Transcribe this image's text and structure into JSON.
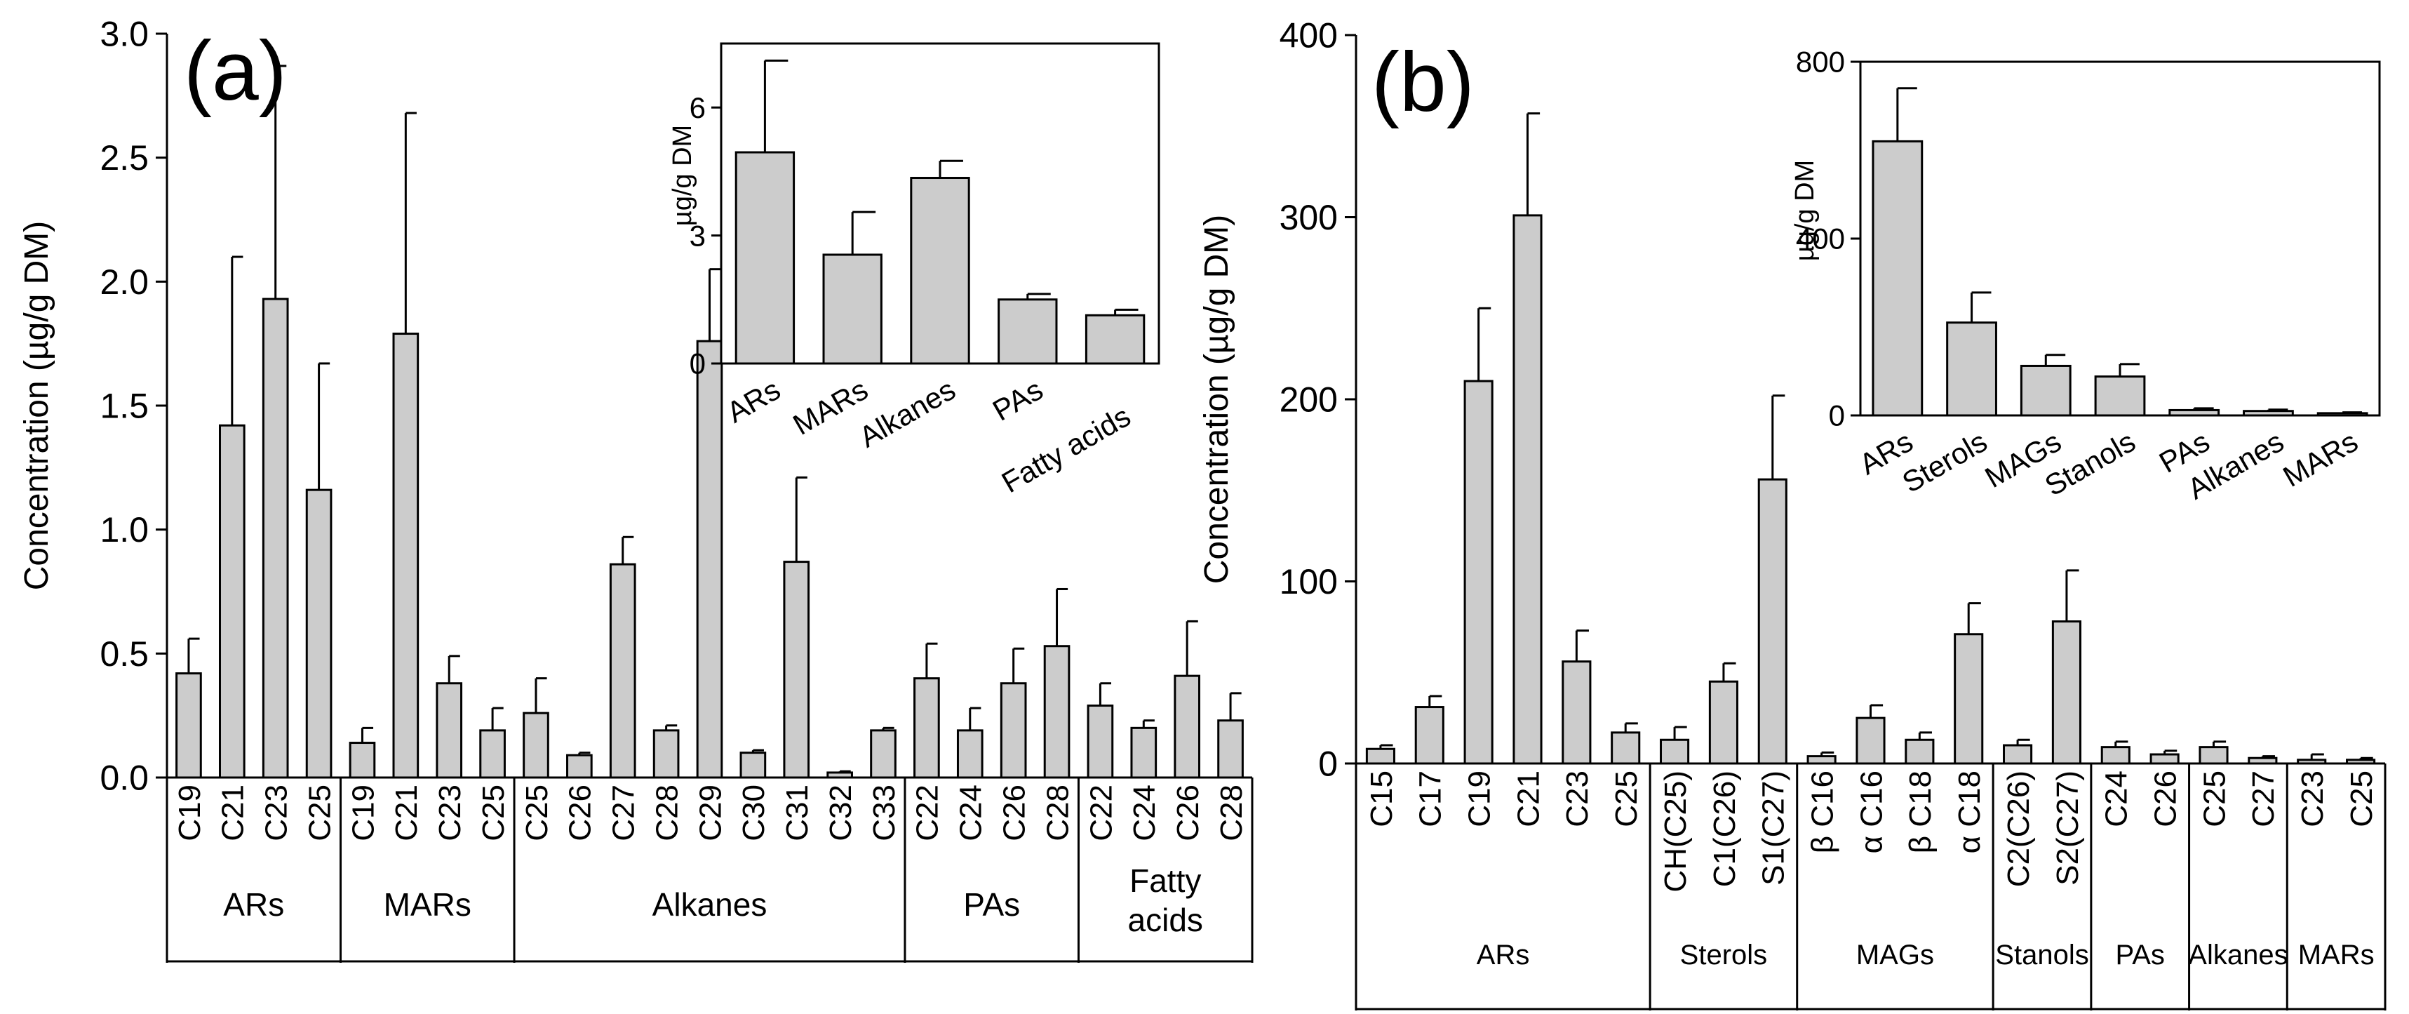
{
  "chart_data": [
    {
      "id": "a",
      "type": "bar",
      "panel_label": "(a)",
      "ylabel": "Concentration (µg/g DM)",
      "ylim": [
        0,
        3.0
      ],
      "yticks": [
        "0.0",
        "0.5",
        "1.0",
        "1.5",
        "2.0",
        "2.5",
        "3.0"
      ],
      "bar_color": "#cccccc",
      "groups": [
        {
          "name": "ARs",
          "categories": [
            "C19",
            "C21",
            "C23",
            "C25"
          ],
          "values": [
            0.42,
            1.42,
            1.93,
            1.16
          ],
          "errors": [
            0.14,
            0.68,
            0.94,
            0.51
          ]
        },
        {
          "name": "MARs",
          "categories": [
            "C19",
            "C21",
            "C23",
            "C25"
          ],
          "values": [
            0.14,
            1.79,
            0.38,
            0.19
          ],
          "errors": [
            0.06,
            0.89,
            0.11,
            0.09
          ]
        },
        {
          "name": "Alkanes",
          "categories": [
            "C25",
            "C26",
            "C27",
            "C28",
            "C29",
            "C30",
            "C31",
            "C32",
            "C33"
          ],
          "values": [
            0.26,
            0.09,
            0.86,
            0.19,
            1.76,
            0.1,
            0.87,
            0.02,
            0.19
          ],
          "errors": [
            0.14,
            0.01,
            0.11,
            0.02,
            0.29,
            0.01,
            0.34,
            0.005,
            0.01
          ]
        },
        {
          "name": "PAs",
          "categories": [
            "C22",
            "C24",
            "C26",
            "C28"
          ],
          "values": [
            0.4,
            0.19,
            0.38,
            0.53
          ],
          "errors": [
            0.14,
            0.09,
            0.14,
            0.23
          ]
        },
        {
          "name": "Fatty acids",
          "label_lines": [
            "Fatty",
            "acids"
          ],
          "categories": [
            "C22",
            "C24",
            "C26",
            "C28"
          ],
          "values": [
            0.29,
            0.2,
            0.41,
            0.23
          ],
          "errors": [
            0.09,
            0.03,
            0.22,
            0.11
          ]
        }
      ],
      "inset": {
        "type": "bar",
        "ylabel": "µg/g DM",
        "ylim": [
          0,
          7.5
        ],
        "yticks": [
          "0",
          "3",
          "6"
        ],
        "categories": [
          "ARs",
          "MARs",
          "Alkanes",
          "PAs",
          "Fatty acids"
        ],
        "values": [
          4.95,
          2.55,
          4.35,
          1.5,
          1.13
        ],
        "errors": [
          2.15,
          1.0,
          0.4,
          0.13,
          0.13
        ]
      }
    },
    {
      "id": "b",
      "type": "bar",
      "panel_label": "(b)",
      "ylabel": "Concentration (µg/g DM)",
      "ylim": [
        0,
        400
      ],
      "yticks": [
        "0",
        "100",
        "200",
        "300",
        "400"
      ],
      "bar_color": "#cccccc",
      "groups": [
        {
          "name": "ARs",
          "categories": [
            "C15",
            "C17",
            "C19",
            "C21",
            "C23",
            "C25"
          ],
          "values": [
            8,
            31,
            210,
            301,
            56,
            17
          ],
          "errors": [
            2,
            6,
            40,
            56,
            17,
            5
          ]
        },
        {
          "name": "Sterols",
          "categories": [
            "CH(C25)",
            "C1(C26)",
            "S1(C27)"
          ],
          "values": [
            13,
            45,
            156
          ],
          "errors": [
            7,
            10,
            46
          ]
        },
        {
          "name": "MAGs",
          "categories": [
            "β C16",
            "α C16",
            "β C18",
            "α C18"
          ],
          "values": [
            4,
            25,
            13,
            71
          ],
          "errors": [
            2,
            7,
            4,
            17
          ]
        },
        {
          "name": "Stanols",
          "categories": [
            "C2(C26)",
            "S2(C27)"
          ],
          "values": [
            10,
            78
          ],
          "errors": [
            3,
            28
          ]
        },
        {
          "name": "PAs",
          "categories": [
            "C24",
            "C26"
          ],
          "values": [
            9,
            5
          ],
          "errors": [
            3,
            2
          ]
        },
        {
          "name": "Alkanes",
          "categories": [
            "C25",
            "C27"
          ],
          "values": [
            9,
            3
          ],
          "errors": [
            3,
            1
          ]
        },
        {
          "name": "MARs",
          "categories": [
            "C23",
            "C25"
          ],
          "values": [
            2,
            2
          ],
          "errors": [
            3,
            1
          ]
        }
      ],
      "inset": {
        "type": "bar",
        "ylabel": "µg/g DM",
        "ylim": [
          0,
          800
        ],
        "yticks": [
          "0",
          "400",
          "800"
        ],
        "categories": [
          "ARs",
          "Sterols",
          "MAGs",
          "Stanols",
          "PAs",
          "Alkanes",
          "MARs"
        ],
        "values": [
          620,
          210,
          112,
          88,
          12,
          10,
          5
        ],
        "errors": [
          120,
          68,
          25,
          28,
          4,
          3,
          2
        ]
      }
    }
  ]
}
